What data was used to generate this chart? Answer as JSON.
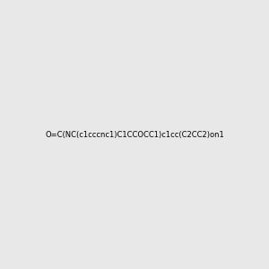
{
  "smiles": "O=C(NC(c1cccnc1)C1CCOCC1)c1cc(C2CC2)on1",
  "img_size": [
    300,
    300
  ],
  "background_color": "#e8e8e8",
  "bond_color": "#000000",
  "atom_colors": {
    "N": "#0000ff",
    "O": "#ff0000",
    "C": "#000000"
  },
  "title": ""
}
